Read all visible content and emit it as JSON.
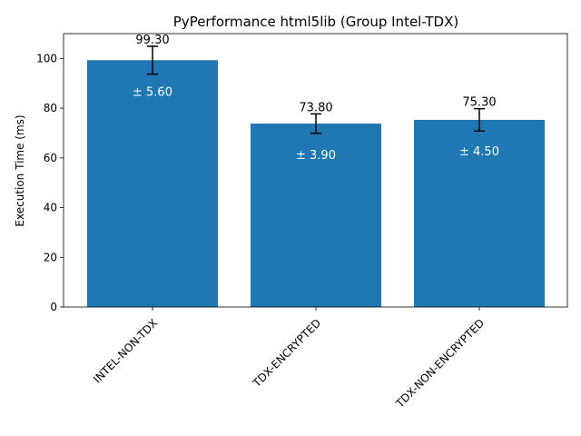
{
  "chart_data": {
    "type": "bar",
    "title": "PyPerformance html5lib (Group Intel-TDX)",
    "xlabel": "",
    "ylabel": "Execution Time (ms)",
    "categories": [
      "INTEL-NON-TDX",
      "TDX-ENCRYPTED",
      "TDX-NON-ENCRYPTED"
    ],
    "values": [
      99.3,
      73.8,
      75.3
    ],
    "errors": [
      5.6,
      3.9,
      4.5
    ],
    "value_labels": [
      "99.30",
      "73.80",
      "75.30"
    ],
    "error_labels": [
      "± 5.60",
      "± 3.90",
      "± 4.50"
    ],
    "ylim": [
      0,
      110
    ],
    "yticks": [
      0,
      20,
      40,
      60,
      80,
      100
    ],
    "ytick_labels": [
      "0",
      "20",
      "40",
      "60",
      "80",
      "100"
    ],
    "bar_color": "#1f77b4",
    "grid": false,
    "legend": "none"
  }
}
